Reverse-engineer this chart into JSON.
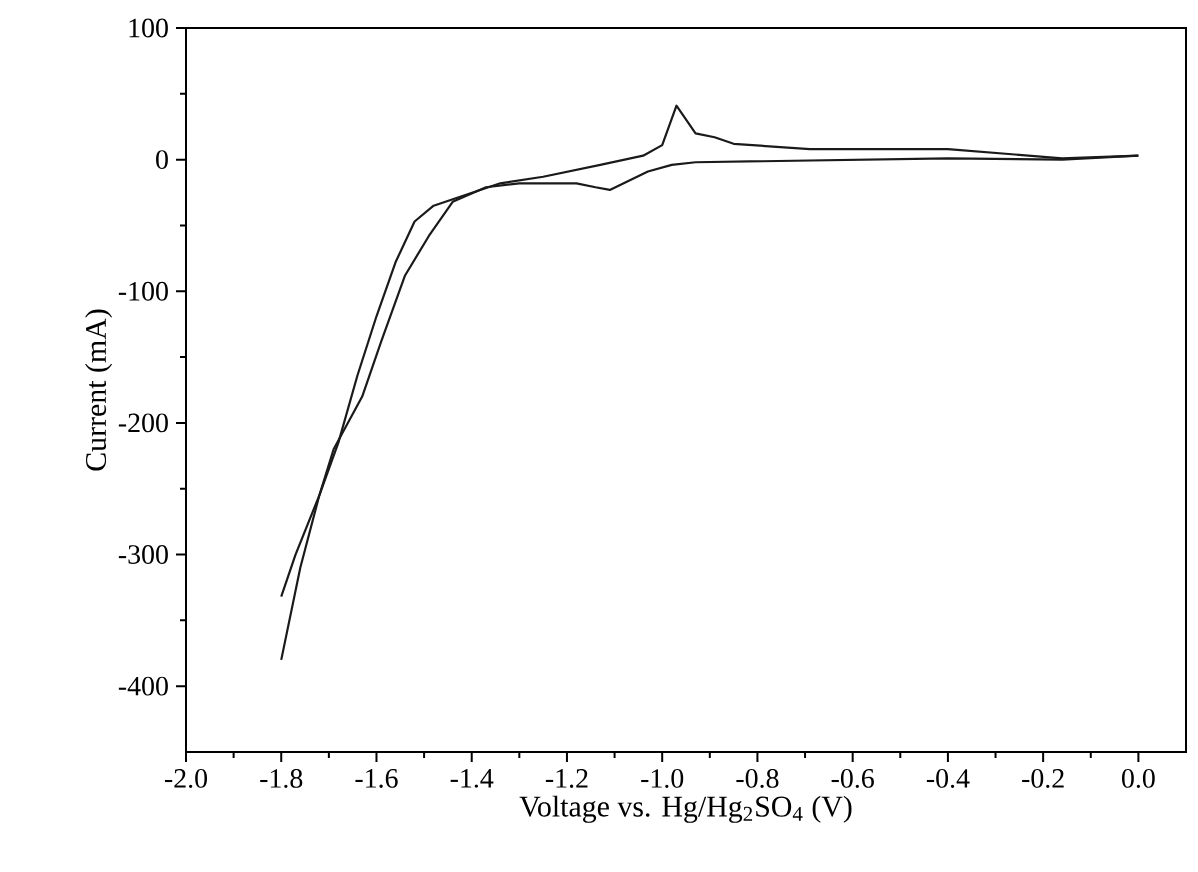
{
  "chart_data": {
    "type": "line",
    "xlabel": "Voltage vs. Hg/Hg$_{2}$SO$_{4}$ (V)",
    "ylabel": "Current (mA)",
    "xlim": [
      -2.0,
      0.1
    ],
    "ylim": [
      -450,
      100
    ],
    "xticks": [
      {
        "value": -2.0,
        "label": "-2.0"
      },
      {
        "value": -1.8,
        "label": "-1.8"
      },
      {
        "value": -1.6,
        "label": "-1.6"
      },
      {
        "value": -1.4,
        "label": "-1.4"
      },
      {
        "value": -1.2,
        "label": "-1.2"
      },
      {
        "value": -1.0,
        "label": "-1.0"
      },
      {
        "value": -0.8,
        "label": "-0.8"
      },
      {
        "value": -0.6,
        "label": "-0.6"
      },
      {
        "value": -0.4,
        "label": "-0.4"
      },
      {
        "value": -0.2,
        "label": "-0.2"
      },
      {
        "value": 0.0,
        "label": "0.0"
      }
    ],
    "yticks": [
      -400,
      -300,
      -200,
      -100,
      0,
      100
    ],
    "marker": "none",
    "line_style": "solid",
    "series": [
      {
        "color": "#1a1a1a",
        "x": [
          -1.8,
          -1.77,
          -1.72,
          -1.68,
          -1.64,
          -1.6,
          -1.56,
          -1.52,
          -1.48,
          -1.39,
          -1.34,
          -1.25,
          -1.13,
          -1.04,
          -1.0,
          -0.97,
          -0.93,
          -0.89,
          -0.85,
          -0.69,
          -0.4,
          -0.16,
          0.0
        ],
        "values": [
          -332,
          -300,
          -255,
          -215,
          -164,
          -119,
          -78,
          -47,
          -35,
          -24,
          -18,
          -13,
          -4,
          3,
          11,
          41,
          20,
          17,
          12,
          8,
          8,
          1,
          3
        ]
      },
      {
        "color": "#1a1a1a",
        "x": [
          0.0,
          -0.16,
          -0.4,
          -0.93,
          -0.98,
          -1.03,
          -1.11,
          -1.14,
          -1.18,
          -1.3,
          -1.37,
          -1.44,
          -1.49,
          -1.54,
          -1.59,
          -1.63,
          -1.69,
          -1.72,
          -1.76,
          -1.8
        ],
        "values": [
          3,
          0,
          1,
          -2,
          -4,
          -9,
          -23,
          -21,
          -18,
          -18,
          -21,
          -32,
          -58,
          -88,
          -138,
          -180,
          -220,
          -255,
          -310,
          -380
        ]
      }
    ]
  }
}
